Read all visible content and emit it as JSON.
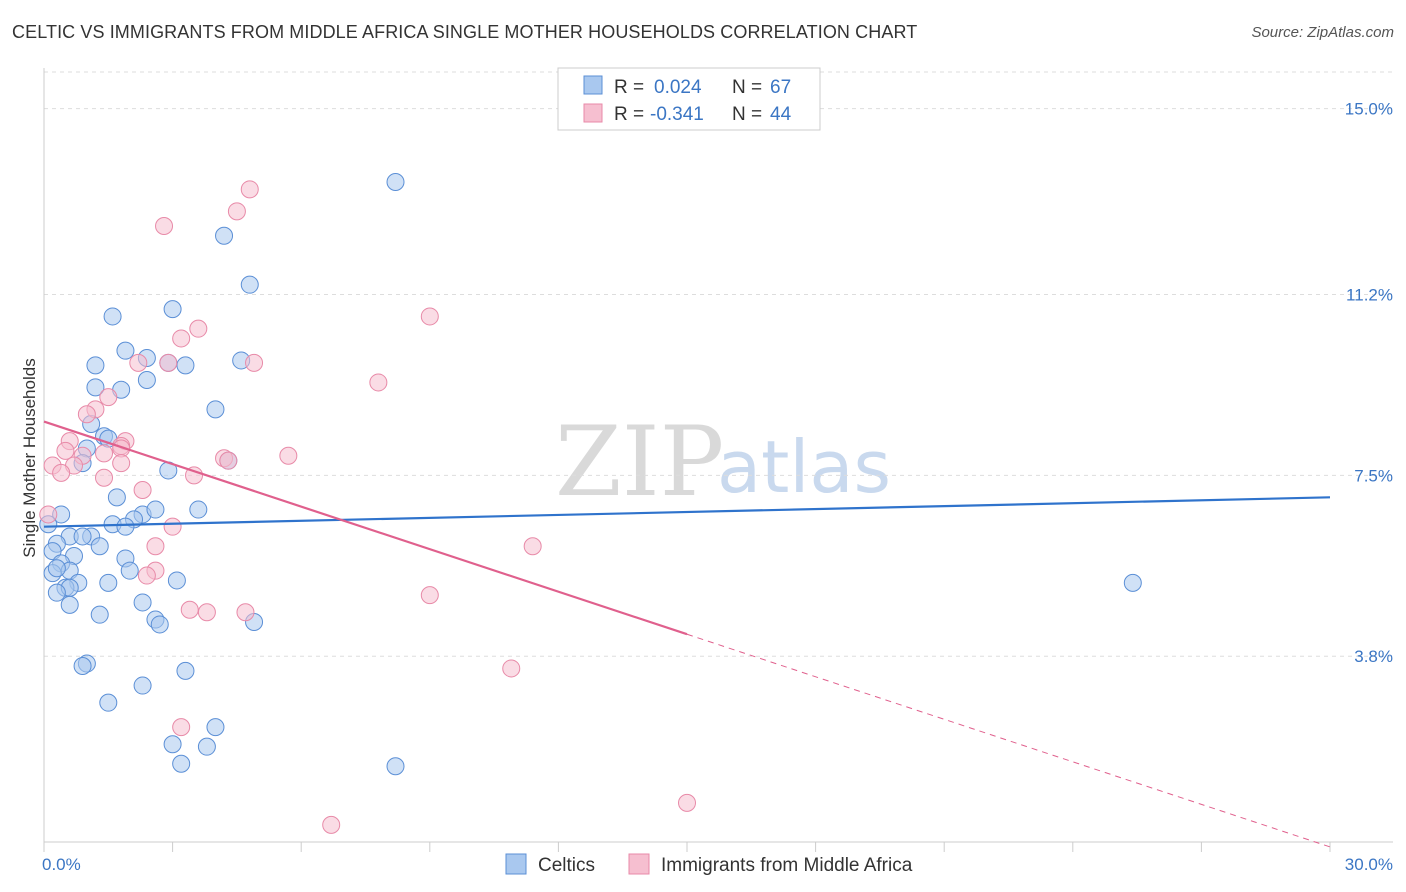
{
  "header": {
    "title": "CELTIC VS IMMIGRANTS FROM MIDDLE AFRICA SINGLE MOTHER HOUSEHOLDS CORRELATION CHART",
    "source": "Source: ZipAtlas.com"
  },
  "watermark": {
    "zip": "ZIP",
    "atlas": "atlas"
  },
  "legend": {
    "rows": [
      {
        "r_label": "R =",
        "r_value": "0.024",
        "n_label": "N =",
        "n_value": "67"
      },
      {
        "r_label": "R =",
        "r_value": "-0.341",
        "n_label": "N =",
        "n_value": "44"
      }
    ]
  },
  "colors": {
    "celtics_fill": "#a9c8ef",
    "celtics_stroke": "#5b8fd6",
    "celtics_line": "#2f73cc",
    "immigrants_fill": "#f6bfd0",
    "immigrants_stroke": "#e88aa8",
    "immigrants_line": "#e0608d",
    "grid": "#dddddd",
    "tick_text": "#3b76c4"
  },
  "chart_data": {
    "type": "scatter",
    "title": "CELTIC VS IMMIGRANTS FROM MIDDLE AFRICA SINGLE MOTHER HOUSEHOLDS CORRELATION CHART",
    "xlabel": "",
    "ylabel": "Single Mother Households",
    "xlim": [
      0,
      30
    ],
    "ylim": [
      0,
      15.75
    ],
    "x_tick_labels": [
      "0.0%",
      "30.0%"
    ],
    "y_ticks": [
      {
        "value": 3.8,
        "label": "3.8%"
      },
      {
        "value": 7.5,
        "label": "7.5%"
      },
      {
        "value": 11.2,
        "label": "11.2%"
      },
      {
        "value": 15.0,
        "label": "15.0%"
      }
    ],
    "grid": "horizontal dashed",
    "legend_position": "top-center",
    "series": [
      {
        "name": "Celtics",
        "color": "#a9c8ef",
        "trend": {
          "x": [
            0,
            30
          ],
          "y": [
            6.45,
            7.05
          ]
        },
        "points": [
          [
            8.2,
            13.5
          ],
          [
            4.2,
            12.4
          ],
          [
            4.8,
            11.4
          ],
          [
            1.6,
            10.75
          ],
          [
            3.0,
            10.9
          ],
          [
            1.9,
            10.05
          ],
          [
            1.2,
            9.75
          ],
          [
            2.4,
            9.9
          ],
          [
            2.9,
            9.8
          ],
          [
            3.3,
            9.75
          ],
          [
            4.6,
            9.85
          ],
          [
            2.4,
            9.45
          ],
          [
            1.2,
            9.3
          ],
          [
            1.8,
            9.25
          ],
          [
            4.0,
            8.85
          ],
          [
            1.1,
            8.55
          ],
          [
            1.4,
            8.3
          ],
          [
            1.5,
            8.25
          ],
          [
            1.0,
            8.05
          ],
          [
            0.9,
            7.75
          ],
          [
            2.9,
            7.6
          ],
          [
            4.3,
            7.8
          ],
          [
            1.7,
            7.05
          ],
          [
            0.4,
            6.7
          ],
          [
            2.3,
            6.7
          ],
          [
            2.6,
            6.8
          ],
          [
            3.6,
            6.8
          ],
          [
            2.1,
            6.6
          ],
          [
            1.6,
            6.5
          ],
          [
            1.9,
            6.45
          ],
          [
            0.6,
            6.25
          ],
          [
            1.1,
            6.25
          ],
          [
            0.9,
            6.25
          ],
          [
            0.3,
            6.1
          ],
          [
            1.3,
            6.05
          ],
          [
            0.2,
            5.95
          ],
          [
            0.7,
            5.85
          ],
          [
            1.9,
            5.8
          ],
          [
            0.4,
            5.7
          ],
          [
            0.6,
            5.55
          ],
          [
            0.2,
            5.5
          ],
          [
            2.0,
            5.55
          ],
          [
            0.8,
            5.3
          ],
          [
            1.5,
            5.3
          ],
          [
            3.1,
            5.35
          ],
          [
            0.5,
            5.2
          ],
          [
            0.6,
            5.2
          ],
          [
            0.3,
            5.1
          ],
          [
            0.6,
            4.85
          ],
          [
            2.3,
            4.9
          ],
          [
            1.3,
            4.65
          ],
          [
            2.6,
            4.55
          ],
          [
            2.7,
            4.45
          ],
          [
            4.9,
            4.5
          ],
          [
            1.0,
            3.65
          ],
          [
            0.9,
            3.6
          ],
          [
            3.3,
            3.5
          ],
          [
            2.3,
            3.2
          ],
          [
            1.5,
            2.85
          ],
          [
            4.0,
            2.35
          ],
          [
            3.0,
            2.0
          ],
          [
            3.8,
            1.95
          ],
          [
            3.2,
            1.6
          ],
          [
            8.2,
            1.55
          ],
          [
            25.4,
            5.3
          ],
          [
            0.1,
            6.5
          ],
          [
            0.3,
            5.6
          ]
        ]
      },
      {
        "name": "Immigrants from Middle Africa",
        "color": "#f6bfd0",
        "trend": {
          "x": [
            0,
            15
          ],
          "y": [
            8.6,
            4.25
          ]
        },
        "trend_dashed": {
          "x": [
            15,
            30
          ],
          "y": [
            4.25,
            -0.1
          ]
        },
        "points": [
          [
            4.8,
            13.35
          ],
          [
            4.5,
            12.9
          ],
          [
            2.8,
            12.6
          ],
          [
            3.6,
            10.5
          ],
          [
            3.2,
            10.3
          ],
          [
            9.0,
            10.75
          ],
          [
            2.2,
            9.8
          ],
          [
            2.9,
            9.8
          ],
          [
            4.9,
            9.8
          ],
          [
            7.8,
            9.4
          ],
          [
            1.5,
            9.1
          ],
          [
            1.2,
            8.85
          ],
          [
            1.0,
            8.75
          ],
          [
            0.6,
            8.2
          ],
          [
            1.9,
            8.2
          ],
          [
            1.8,
            8.1
          ],
          [
            0.5,
            8.0
          ],
          [
            1.8,
            8.05
          ],
          [
            1.4,
            7.95
          ],
          [
            0.9,
            7.9
          ],
          [
            4.2,
            7.85
          ],
          [
            5.7,
            7.9
          ],
          [
            0.2,
            7.7
          ],
          [
            0.7,
            7.7
          ],
          [
            1.8,
            7.75
          ],
          [
            4.3,
            7.8
          ],
          [
            0.4,
            7.55
          ],
          [
            3.5,
            7.5
          ],
          [
            1.4,
            7.45
          ],
          [
            2.3,
            7.2
          ],
          [
            0.1,
            6.7
          ],
          [
            3.0,
            6.45
          ],
          [
            11.4,
            6.05
          ],
          [
            2.6,
            6.05
          ],
          [
            2.6,
            5.55
          ],
          [
            2.4,
            5.45
          ],
          [
            9.0,
            5.05
          ],
          [
            3.4,
            4.75
          ],
          [
            3.8,
            4.7
          ],
          [
            4.7,
            4.7
          ],
          [
            3.2,
            2.35
          ],
          [
            10.9,
            3.55
          ],
          [
            15.0,
            0.8
          ],
          [
            6.7,
            0.35
          ]
        ]
      }
    ]
  },
  "bottom_legend": {
    "items": [
      {
        "label": "Celtics"
      },
      {
        "label": "Immigrants from Middle Africa"
      }
    ]
  }
}
